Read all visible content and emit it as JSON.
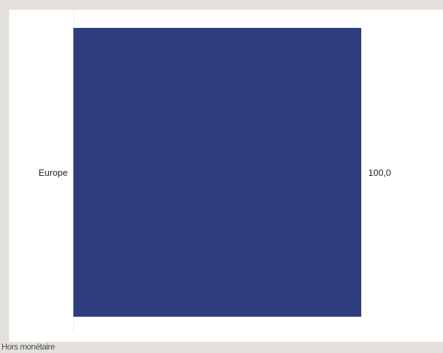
{
  "chart_data": {
    "type": "bar",
    "orientation": "horizontal",
    "categories": [
      "Europe"
    ],
    "values": [
      100.0
    ],
    "value_labels": [
      "100,0"
    ],
    "xlim": [
      0,
      100
    ],
    "grid": false,
    "colors": {
      "bar": "#2e3d7e"
    }
  },
  "footer": {
    "label": "Hors monétaire"
  }
}
